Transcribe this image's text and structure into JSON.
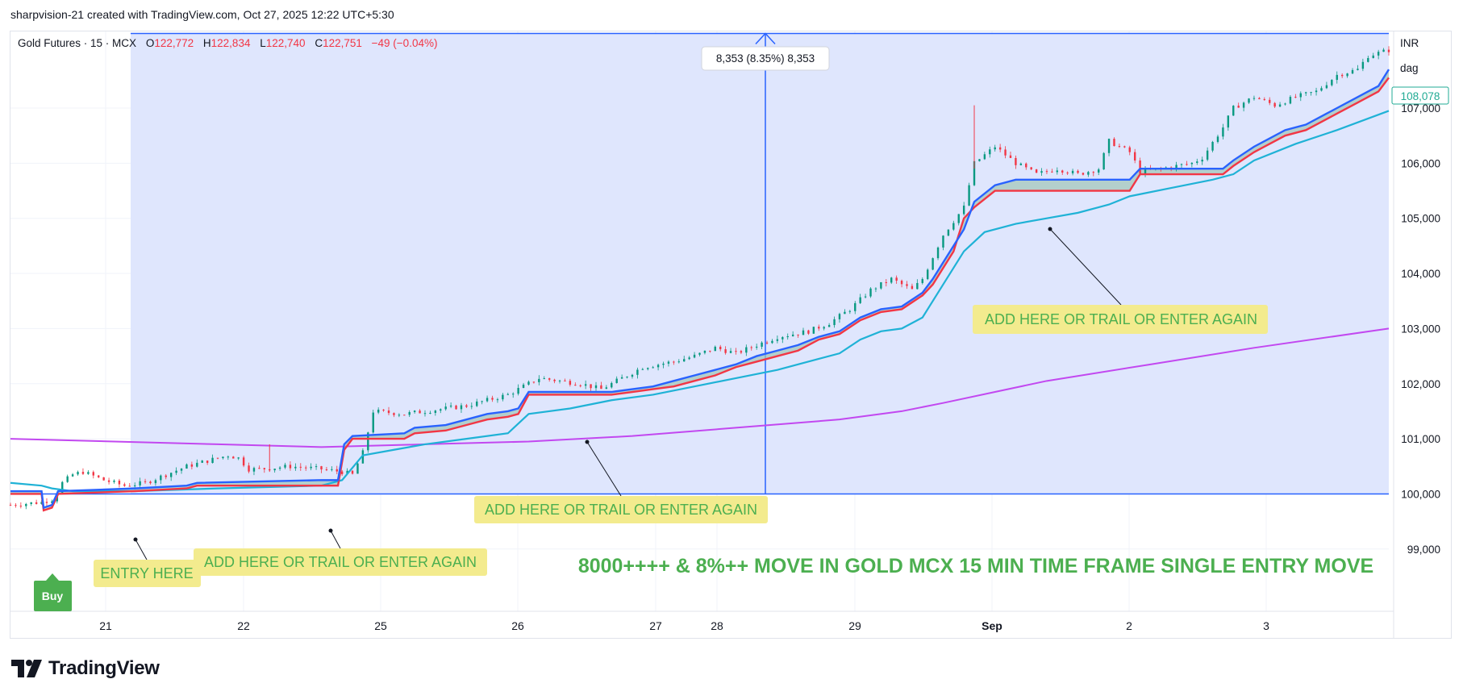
{
  "attribution": "sharpvision-21 created with TradingView.com, Oct 27, 2025 12:22 UTC+5:30",
  "header": {
    "symbol": "Gold Futures · 15 · MCX",
    "open_label": "O",
    "open": "122,772",
    "high_label": "H",
    "high": "122,834",
    "low_label": "L",
    "low": "122,740",
    "close_label": "C",
    "close": "122,751",
    "change": "−49 (−0.04%)"
  },
  "currency": "INR",
  "unit": "dag",
  "last_price_label": "108,078",
  "measure_label": "8,353 (8.35%) 8,353",
  "brand": "TradingView",
  "buy_label": "Buy",
  "colors": {
    "candle_up": "#089981",
    "candle_down": "#f23645",
    "blue_line": "#2962ff",
    "red_line": "#f23645",
    "cyan_line": "#1fb2d6",
    "magenta_line": "#c248f0",
    "measure_fill": "#dfe6fd",
    "measure_line": "#2962ff",
    "annotation_bg": "#f3eb8e",
    "annotation_text": "#4caf50",
    "price_tag": "#22ab94"
  },
  "chart_data": {
    "type": "line",
    "x_ticks": [
      "21",
      "22",
      "25",
      "26",
      "27",
      "28",
      "29",
      "Sep",
      "2",
      "3"
    ],
    "y_ticks": [
      "99,000",
      "100,000",
      "101,000",
      "102,000",
      "103,000",
      "104,000",
      "105,000",
      "106,000",
      "107,000"
    ],
    "ylim": [
      98300,
      108800
    ],
    "price_series": [
      [
        0,
        99800
      ],
      [
        3,
        99850
      ],
      [
        4,
        99900
      ],
      [
        5,
        100200
      ],
      [
        6,
        100350
      ],
      [
        7,
        100400
      ],
      [
        9,
        100250
      ],
      [
        11,
        100150
      ],
      [
        13,
        100200
      ],
      [
        15,
        100350
      ],
      [
        17,
        100500
      ],
      [
        19,
        100600
      ],
      [
        21,
        100700
      ],
      [
        22,
        100650
      ],
      [
        23,
        100450
      ],
      [
        24,
        100450
      ],
      [
        27,
        100500
      ],
      [
        30,
        100450
      ],
      [
        32,
        100400
      ],
      [
        33,
        100350
      ],
      [
        34,
        100750
      ],
      [
        35,
        101500
      ],
      [
        38,
        101450
      ],
      [
        40,
        101500
      ],
      [
        42,
        101550
      ],
      [
        44,
        101600
      ],
      [
        46,
        101700
      ],
      [
        48,
        101800
      ],
      [
        50,
        102000
      ],
      [
        51,
        102100
      ],
      [
        53,
        102050
      ],
      [
        55,
        102000
      ],
      [
        57,
        101900
      ],
      [
        59,
        102100
      ],
      [
        61,
        102300
      ],
      [
        64,
        102400
      ],
      [
        66,
        102500
      ],
      [
        68,
        102650
      ],
      [
        70,
        102550
      ],
      [
        72,
        102700
      ],
      [
        74,
        102850
      ],
      [
        77,
        102950
      ],
      [
        79,
        103100
      ],
      [
        81,
        103350
      ],
      [
        83,
        103700
      ],
      [
        85,
        103900
      ],
      [
        87,
        103700
      ],
      [
        88,
        103900
      ],
      [
        90,
        104700
      ],
      [
        92,
        105200
      ],
      [
        93,
        106000
      ],
      [
        95,
        106300
      ],
      [
        97,
        106000
      ],
      [
        99,
        105800
      ],
      [
        101,
        105900
      ],
      [
        103,
        105800
      ],
      [
        105,
        105900
      ],
      [
        106,
        106400
      ],
      [
        108,
        106200
      ],
      [
        109,
        105850
      ],
      [
        111,
        105900
      ],
      [
        114,
        106000
      ],
      [
        115,
        106100
      ],
      [
        117,
        106650
      ],
      [
        118,
        107000
      ],
      [
        120,
        107200
      ],
      [
        122,
        107050
      ],
      [
        124,
        107200
      ],
      [
        126,
        107300
      ],
      [
        128,
        107600
      ],
      [
        130,
        107700
      ],
      [
        131,
        107950
      ],
      [
        133,
        108050
      ]
    ],
    "blue_series": [
      [
        0,
        100050
      ],
      [
        3,
        100050
      ],
      [
        3.2,
        99750
      ],
      [
        4,
        99800
      ],
      [
        4.6,
        100050
      ],
      [
        12,
        100100
      ],
      [
        17,
        100150
      ],
      [
        18,
        100200
      ],
      [
        30,
        100250
      ],
      [
        31.6,
        100250
      ],
      [
        32.2,
        100900
      ],
      [
        33,
        101050
      ],
      [
        38,
        101100
      ],
      [
        39,
        101200
      ],
      [
        42,
        101250
      ],
      [
        44,
        101350
      ],
      [
        46,
        101450
      ],
      [
        48,
        101500
      ],
      [
        49,
        101550
      ],
      [
        50,
        101850
      ],
      [
        58,
        101850
      ],
      [
        60,
        101900
      ],
      [
        62,
        101950
      ],
      [
        64,
        102050
      ],
      [
        66,
        102150
      ],
      [
        68,
        102250
      ],
      [
        70,
        102350
      ],
      [
        72,
        102500
      ],
      [
        74,
        102600
      ],
      [
        76,
        102700
      ],
      [
        78,
        102850
      ],
      [
        80,
        102950
      ],
      [
        82,
        103200
      ],
      [
        84,
        103350
      ],
      [
        86,
        103400
      ],
      [
        88,
        103650
      ],
      [
        89,
        103900
      ],
      [
        91,
        104500
      ],
      [
        92,
        104800
      ],
      [
        93,
        105300
      ],
      [
        95,
        105600
      ],
      [
        97,
        105700
      ],
      [
        108,
        105700
      ],
      [
        109,
        105900
      ],
      [
        117,
        105900
      ],
      [
        118,
        106050
      ],
      [
        120,
        106300
      ],
      [
        121,
        106400
      ],
      [
        123,
        106600
      ],
      [
        125,
        106700
      ],
      [
        127,
        106900
      ],
      [
        128,
        107000
      ],
      [
        130,
        107200
      ],
      [
        131,
        107300
      ],
      [
        132,
        107400
      ],
      [
        133,
        107700
      ]
    ],
    "red_series": [
      [
        0,
        100000
      ],
      [
        3,
        100000
      ],
      [
        3.2,
        99700
      ],
      [
        4,
        99750
      ],
      [
        4.6,
        100000
      ],
      [
        12,
        100050
      ],
      [
        17,
        100100
      ],
      [
        18,
        100150
      ],
      [
        30,
        100150
      ],
      [
        31.6,
        100150
      ],
      [
        32.2,
        100800
      ],
      [
        33,
        101000
      ],
      [
        38,
        101000
      ],
      [
        39,
        101100
      ],
      [
        42,
        101150
      ],
      [
        44,
        101250
      ],
      [
        46,
        101350
      ],
      [
        48,
        101400
      ],
      [
        49,
        101450
      ],
      [
        50,
        101800
      ],
      [
        58,
        101800
      ],
      [
        60,
        101850
      ],
      [
        62,
        101900
      ],
      [
        64,
        101950
      ],
      [
        66,
        102050
      ],
      [
        68,
        102150
      ],
      [
        70,
        102300
      ],
      [
        72,
        102400
      ],
      [
        74,
        102500
      ],
      [
        76,
        102600
      ],
      [
        78,
        102800
      ],
      [
        80,
        102900
      ],
      [
        82,
        103150
      ],
      [
        84,
        103300
      ],
      [
        86,
        103350
      ],
      [
        88,
        103600
      ],
      [
        89,
        103800
      ],
      [
        91,
        104400
      ],
      [
        92,
        105000
      ],
      [
        93,
        105200
      ],
      [
        95,
        105500
      ],
      [
        108,
        105500
      ],
      [
        109,
        105800
      ],
      [
        117,
        105800
      ],
      [
        118,
        105950
      ],
      [
        120,
        106200
      ],
      [
        121,
        106300
      ],
      [
        123,
        106500
      ],
      [
        125,
        106600
      ],
      [
        127,
        106800
      ],
      [
        128,
        106900
      ],
      [
        130,
        107100
      ],
      [
        131,
        107200
      ],
      [
        132,
        107300
      ],
      [
        133,
        107550
      ]
    ],
    "cyan_series": [
      [
        0,
        100200
      ],
      [
        3,
        100150
      ],
      [
        4,
        100100
      ],
      [
        6,
        100050
      ],
      [
        12,
        100050
      ],
      [
        20,
        100100
      ],
      [
        30,
        100150
      ],
      [
        32,
        100250
      ],
      [
        34,
        100700
      ],
      [
        37,
        100800
      ],
      [
        40,
        100900
      ],
      [
        44,
        101000
      ],
      [
        48,
        101100
      ],
      [
        50,
        101450
      ],
      [
        54,
        101550
      ],
      [
        58,
        101700
      ],
      [
        62,
        101800
      ],
      [
        66,
        101950
      ],
      [
        70,
        102100
      ],
      [
        74,
        102250
      ],
      [
        78,
        102450
      ],
      [
        80,
        102550
      ],
      [
        82,
        102800
      ],
      [
        84,
        102950
      ],
      [
        86,
        103000
      ],
      [
        88,
        103200
      ],
      [
        90,
        103800
      ],
      [
        92,
        104400
      ],
      [
        94,
        104750
      ],
      [
        97,
        104900
      ],
      [
        100,
        105000
      ],
      [
        103,
        105100
      ],
      [
        106,
        105250
      ],
      [
        108,
        105400
      ],
      [
        112,
        105550
      ],
      [
        116,
        105700
      ],
      [
        118,
        105800
      ],
      [
        120,
        106050
      ],
      [
        124,
        106350
      ],
      [
        128,
        106600
      ],
      [
        133,
        106950
      ]
    ],
    "magenta_series": [
      [
        0,
        101000
      ],
      [
        10,
        100950
      ],
      [
        20,
        100900
      ],
      [
        30,
        100850
      ],
      [
        40,
        100900
      ],
      [
        50,
        100950
      ],
      [
        60,
        101050
      ],
      [
        70,
        101200
      ],
      [
        80,
        101350
      ],
      [
        86,
        101500
      ],
      [
        90,
        101650
      ],
      [
        95,
        101850
      ],
      [
        100,
        102050
      ],
      [
        110,
        102350
      ],
      [
        120,
        102650
      ],
      [
        133,
        103000
      ]
    ],
    "measure": {
      "from": 100000,
      "to": 108353
    },
    "annotations": [
      {
        "text": "ENTRY HERE"
      },
      {
        "text": "ADD HERE OR TRAIL OR ENTER AGAIN"
      },
      {
        "text": "ADD HERE OR TRAIL OR ENTER AGAIN"
      },
      {
        "text": "ADD HERE OR TRAIL OR ENTER AGAIN"
      }
    ],
    "headline": "8000++++ & 8%++ MOVE IN GOLD MCX 15 MIN TIME FRAME SINGLE ENTRY MOVE"
  }
}
